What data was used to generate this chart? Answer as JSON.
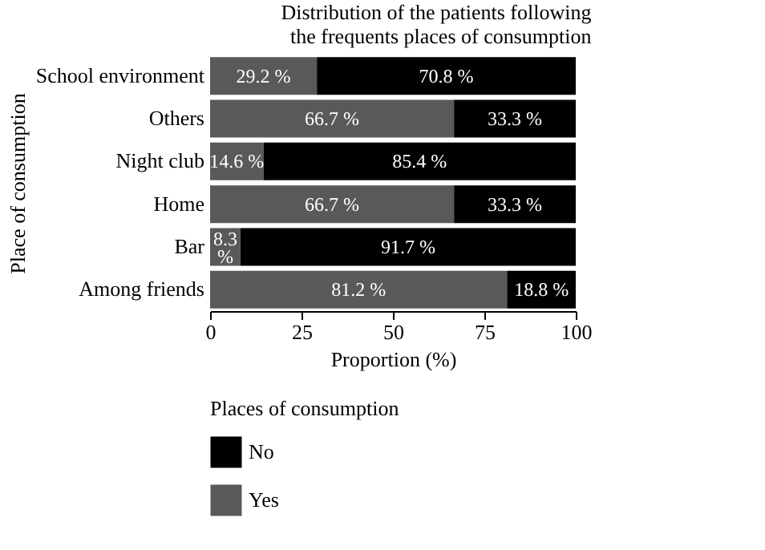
{
  "chart_data": {
    "type": "bar",
    "orientation": "horizontal",
    "stacked": true,
    "title": "Distribution of the patients following the frequents places of consumption",
    "xlabel": "Proportion (%)",
    "ylabel": "Place of consumption",
    "legend_title": "Places of consumption",
    "categories": [
      "School environment",
      "Others",
      "Night club",
      "Home",
      "Bar",
      "Among friends"
    ],
    "series": [
      {
        "name": "Yes",
        "color": "#595959",
        "values": [
          29.2,
          66.7,
          14.6,
          66.7,
          8.3,
          81.2
        ],
        "value_labels": [
          "29.2 %",
          "66.7 %",
          "14.6 %",
          "66.7 %",
          "8.3 %",
          "81.2 %"
        ]
      },
      {
        "name": "No",
        "color": "#000000",
        "values": [
          70.8,
          33.3,
          85.4,
          33.3,
          91.7,
          18.8
        ],
        "value_labels": [
          "70.8 %",
          "33.3 %",
          "85.4 %",
          "33.3 %",
          "91.7 %",
          "18.8 %"
        ]
      }
    ],
    "xlim": [
      0,
      100
    ],
    "xticks": [
      0,
      25,
      50,
      75,
      100
    ],
    "grid": false,
    "legend": "bottom"
  }
}
